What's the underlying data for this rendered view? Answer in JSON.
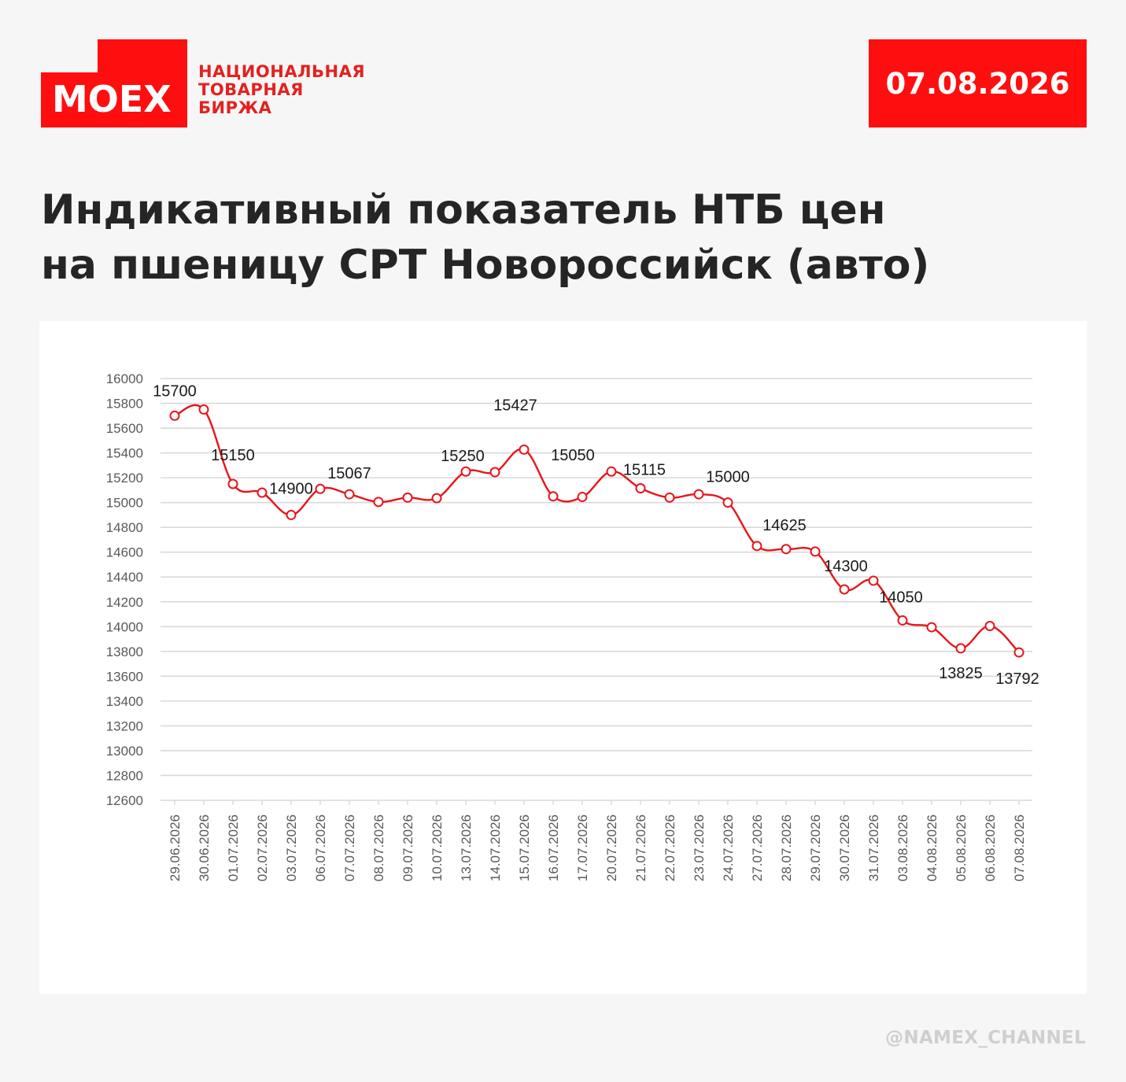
{
  "header": {
    "logo_text": "MOEX",
    "brand_lines": [
      "НАЦИОНАЛЬНАЯ",
      "ТОВАРНАЯ",
      "БИРЖА"
    ],
    "date": "07.08.2026"
  },
  "title_lines": [
    "Индикативный показатель НТБ цен",
    "на пшеницу СРТ Новороссийск (авто)"
  ],
  "footer": {
    "handle": "@NAMEX_CHANNEL"
  },
  "colors": {
    "brand_red": "#ff0e10",
    "line_red": "#e8141a"
  },
  "chart_data": {
    "type": "line",
    "title": "",
    "xlabel": "",
    "ylabel": "",
    "ylim": [
      12600,
      16000
    ],
    "yticks": [
      16000,
      15800,
      15600,
      15400,
      15200,
      15000,
      14800,
      14600,
      14400,
      14200,
      14000,
      13800,
      13600,
      13400,
      13200,
      13000,
      12800,
      12600
    ],
    "grid": true,
    "legend": "none",
    "categories": [
      "29.06.2026",
      "30.06.2026",
      "01.07.2026",
      "02.07.2026",
      "03.07.2026",
      "06.07.2026",
      "07.07.2026",
      "08.07.2026",
      "09.07.2026",
      "10.07.2026",
      "13.07.2026",
      "14.07.2026",
      "15.07.2026",
      "16.07.2026",
      "17.07.2026",
      "20.07.2026",
      "21.07.2026",
      "22.07.2026",
      "23.07.2026",
      "24.07.2026",
      "27.07.2026",
      "28.07.2026",
      "29.07.2026",
      "30.07.2026",
      "31.07.2026",
      "03.08.2026",
      "04.08.2026",
      "05.08.2026",
      "06.08.2026",
      "07.08.2026"
    ],
    "series": [
      {
        "values": [
          15700,
          15750,
          15150,
          15080,
          14900,
          15110,
          15067,
          15005,
          15040,
          15035,
          15250,
          15245,
          15427,
          15050,
          15045,
          15250,
          15115,
          15040,
          15067,
          15000,
          14650,
          14625,
          14605,
          14300,
          14370,
          14050,
          13995,
          13825,
          14005,
          13792
        ]
      }
    ],
    "data_labels": [
      {
        "index": 0,
        "text": "15700"
      },
      {
        "index": 2,
        "text": "15150"
      },
      {
        "index": 4,
        "text": "14900"
      },
      {
        "index": 6,
        "text": "15067"
      },
      {
        "index": 10,
        "text": "15250"
      },
      {
        "index": 12,
        "text": "15427"
      },
      {
        "index": 13,
        "text": "15050"
      },
      {
        "index": 16,
        "text": "15115"
      },
      {
        "index": 19,
        "text": "15000"
      },
      {
        "index": 21,
        "text": "14625"
      },
      {
        "index": 23,
        "text": "14300"
      },
      {
        "index": 25,
        "text": "14050"
      },
      {
        "index": 27,
        "text": "13825"
      },
      {
        "index": 29,
        "text": "13792"
      }
    ]
  }
}
